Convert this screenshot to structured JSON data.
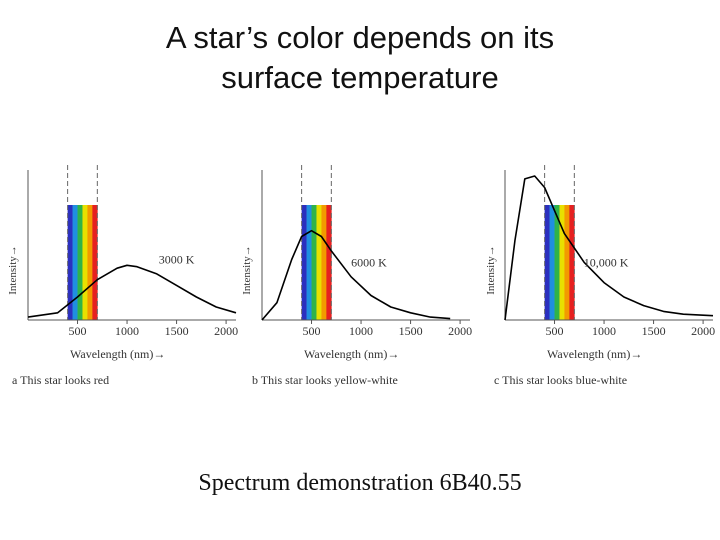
{
  "slide": {
    "title_line1": "A star’s color depends on its",
    "title_line2": "surface temperature",
    "caption": "Spectrum demonstration 6B40.55"
  },
  "colors": {
    "spectrum": [
      "#2b2fbf",
      "#1f8fe0",
      "#2fb34a",
      "#e8e000",
      "#f29a00",
      "#e62020"
    ],
    "curve": "#000000",
    "axis": "#555555"
  },
  "chart_data": [
    {
      "type": "line",
      "temperature_label": "3000 K",
      "xlabel": "Wavelength (nm)→",
      "ylabel": "Intensity→",
      "panel_caption": "a  This star looks red",
      "x_ticks": [
        500,
        1000,
        1500,
        2000
      ],
      "xlim": [
        0,
        2100
      ],
      "visible_band": [
        400,
        700
      ],
      "series": [
        {
          "x": [
            0,
            300,
            500,
            700,
            900,
            1000,
            1100,
            1300,
            1500,
            1700,
            1900,
            2100
          ],
          "y": [
            0.02,
            0.05,
            0.16,
            0.28,
            0.36,
            0.38,
            0.37,
            0.32,
            0.24,
            0.16,
            0.09,
            0.05
          ]
        }
      ]
    },
    {
      "type": "line",
      "temperature_label": "6000 K",
      "xlabel": "Wavelength (nm)→",
      "ylabel": "Intensity→",
      "panel_caption": "b  This star looks yellow-white",
      "x_ticks": [
        500,
        1000,
        1500,
        2000
      ],
      "xlim": [
        0,
        2100
      ],
      "visible_band": [
        400,
        700
      ],
      "series": [
        {
          "x": [
            0,
            150,
            300,
            400,
            500,
            600,
            700,
            900,
            1100,
            1300,
            1500,
            1700,
            1900
          ],
          "y": [
            0.0,
            0.12,
            0.42,
            0.58,
            0.62,
            0.58,
            0.48,
            0.3,
            0.17,
            0.09,
            0.05,
            0.02,
            0.01
          ]
        }
      ]
    },
    {
      "type": "line",
      "temperature_label": "10,000 K",
      "xlabel": "Wavelength (nm)→",
      "ylabel": "Intensity→",
      "panel_caption": "c  This star looks blue-white",
      "x_ticks": [
        500,
        1000,
        1500,
        2000
      ],
      "xlim": [
        0,
        2100
      ],
      "visible_band": [
        400,
        700
      ],
      "series": [
        {
          "x": [
            0,
            100,
            200,
            300,
            400,
            500,
            600,
            800,
            1000,
            1200,
            1400,
            1600,
            1800,
            2100
          ],
          "y": [
            0.0,
            0.55,
            0.98,
            1.0,
            0.92,
            0.76,
            0.6,
            0.4,
            0.26,
            0.16,
            0.1,
            0.06,
            0.04,
            0.03
          ]
        }
      ]
    }
  ]
}
